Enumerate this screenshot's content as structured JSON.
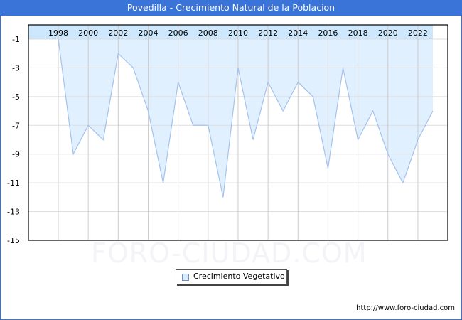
{
  "header": {
    "title": "Povedilla - Crecimiento Natural de la Poblacion"
  },
  "legend": {
    "label": "Crecimiento Vegetativo"
  },
  "footer": {
    "url": "http://www.foro-ciudad.com"
  },
  "watermark": "FORO-CIUDAD.COM",
  "colors": {
    "title_bar": "#3a74d8",
    "area_fill": "#e1f0fe",
    "line": "#a4c2ee",
    "year_band": "#cde7fd",
    "grid": "#dddddd"
  },
  "chart_data": {
    "type": "area",
    "title": "Povedilla - Crecimiento Natural de la Poblacion",
    "xlabel": "",
    "ylabel": "",
    "x": [
      1998,
      1999,
      2000,
      2001,
      2002,
      2003,
      2004,
      2005,
      2006,
      2007,
      2008,
      2009,
      2010,
      2011,
      2012,
      2013,
      2014,
      2015,
      2016,
      2017,
      2018,
      2019,
      2020,
      2021,
      2022,
      2023
    ],
    "series": [
      {
        "name": "Crecimiento Vegetativo",
        "values": [
          -1,
          -9,
          -7,
          -8,
          -2,
          -3,
          -6,
          -11,
          -4,
          -7,
          -7,
          -12,
          -3,
          -8,
          -4,
          -6,
          -4,
          -5,
          -10,
          -3,
          -8,
          -6,
          -9,
          -11,
          -8,
          -6
        ]
      }
    ],
    "x_tick_labels": [
      "1998",
      "2000",
      "2002",
      "2004",
      "2006",
      "2008",
      "2010",
      "2012",
      "2014",
      "2016",
      "2018",
      "2020",
      "2022"
    ],
    "y_tick_labels": [
      "-1",
      "-3",
      "-5",
      "-7",
      "-9",
      "-11",
      "-13",
      "-15"
    ],
    "ylim": [
      -15,
      -1
    ],
    "grid": true,
    "legend_position": "bottom-center"
  }
}
